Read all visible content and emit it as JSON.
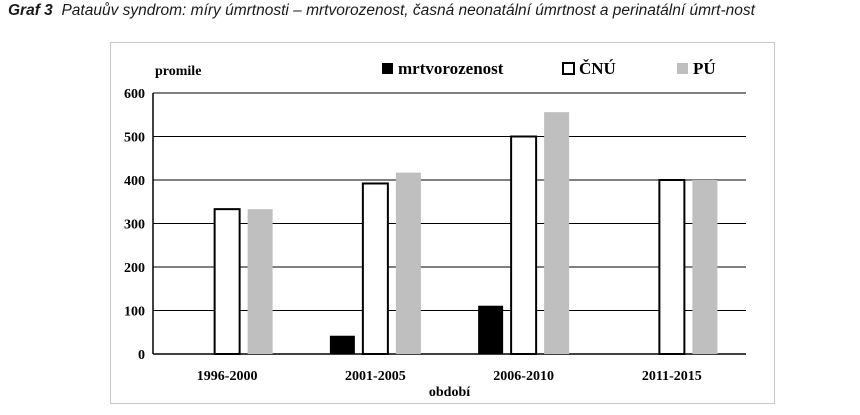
{
  "caption": {
    "label": "Graf 3",
    "text": "Patauův syndrom: míry úmrtnosti – mrtvorozenost, časná neonatální úmrtnost a perinatální úmrt-nost"
  },
  "chart_data": {
    "type": "bar",
    "ylabel": "promile",
    "xlabel": "období",
    "ylim": [
      0,
      600
    ],
    "yticks": [
      0,
      100,
      200,
      300,
      400,
      500,
      600
    ],
    "grid": true,
    "legend_position": "top",
    "categories": [
      "1996-2000",
      "2001-2005",
      "2006-2010",
      "2011-2015"
    ],
    "series": [
      {
        "name": "mrtvorozenost",
        "color": "#000000",
        "values": [
          0,
          42,
          111,
          0
        ]
      },
      {
        "name": "ČNÚ",
        "color": "#ffffff",
        "values": [
          333,
          392,
          500,
          400
        ]
      },
      {
        "name": "PÚ",
        "color": "#bfbfbf",
        "values": [
          333,
          417,
          556,
          400
        ]
      }
    ]
  }
}
